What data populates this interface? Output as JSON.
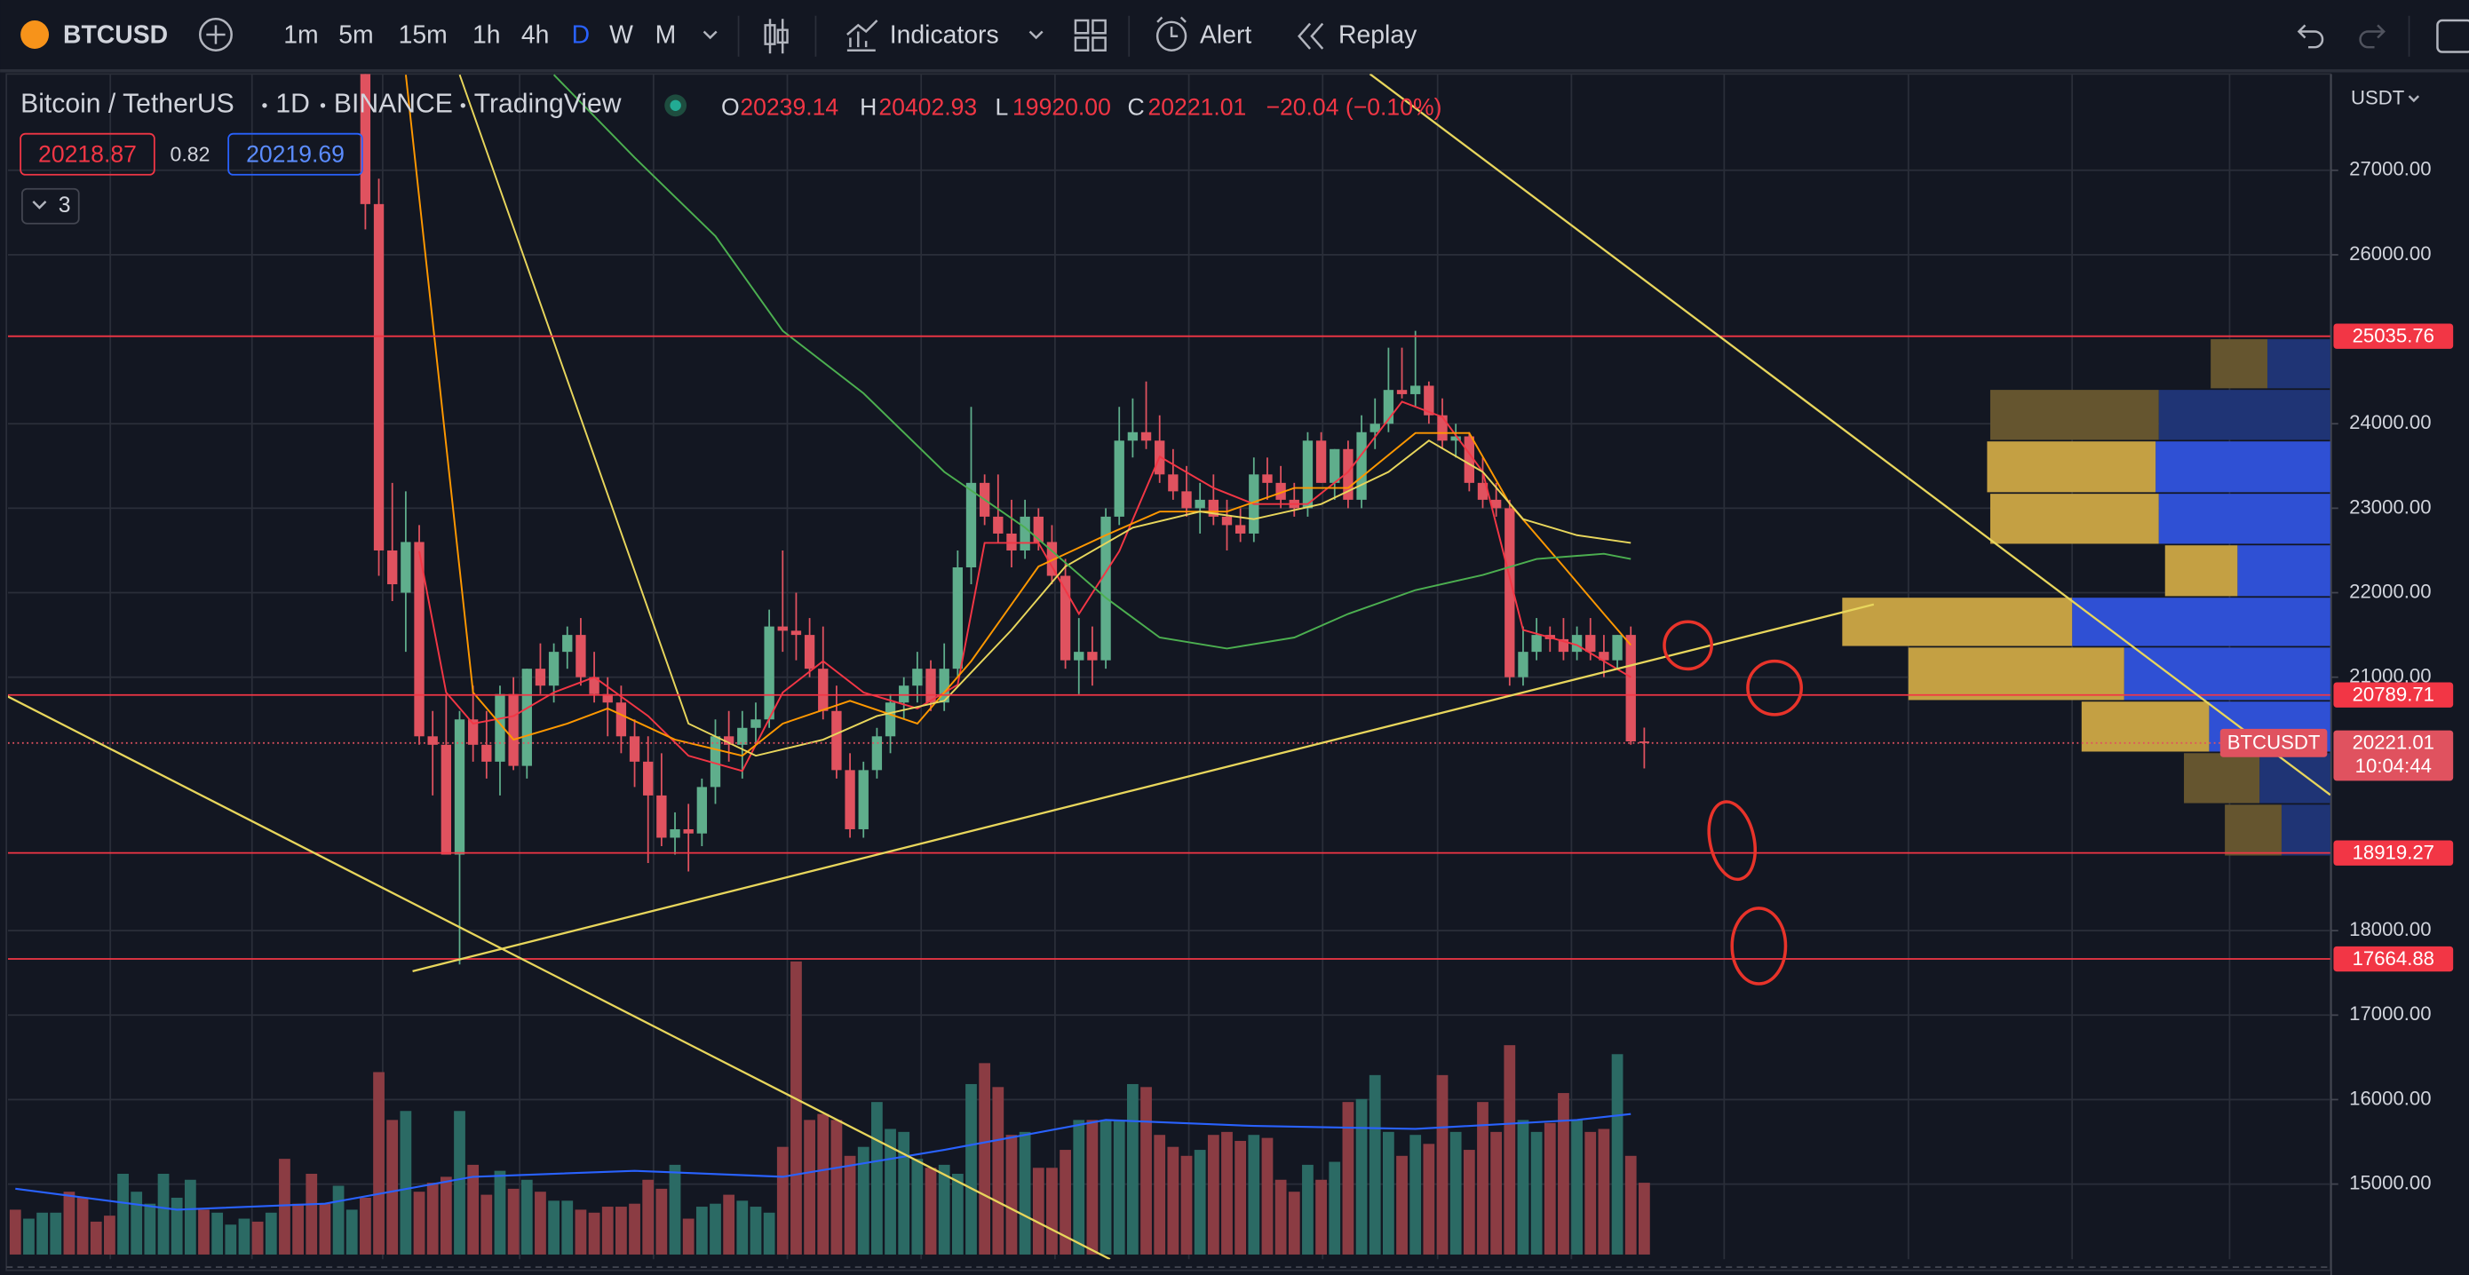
{
  "toolbar": {
    "symbol": "BTCUSD",
    "intervals": [
      "1m",
      "5m",
      "15m",
      "1h",
      "4h",
      "D",
      "W",
      "M"
    ],
    "indicators": "Indicators",
    "alert": "Alert",
    "replay": "Replay"
  },
  "legend": {
    "name": "Bitcoin / TetherUS",
    "interval": "1D",
    "exchange": "BINANCE",
    "source": "TradingView",
    "o_label": "O",
    "open": "20239.14",
    "h_label": "H",
    "high": "20402.93",
    "l_label": "L",
    "low": "19920.00",
    "c_label": "C",
    "close": "20221.01",
    "change": "−20.04 (−0.10%)",
    "bid": "20218.87",
    "spread": "0.82",
    "ask": "20219.69",
    "indicator_count": "3"
  },
  "chart_data": {
    "type": "candlestick",
    "currency": "USDT",
    "ylim": [
      14110,
      28140
    ],
    "yticks": [
      {
        "value": 27000,
        "label": "27000.00"
      },
      {
        "value": 26000,
        "label": "26000.00"
      },
      {
        "value": 24000,
        "label": "24000.00"
      },
      {
        "value": 23000,
        "label": "23000.00"
      },
      {
        "value": 22000,
        "label": "22000.00"
      },
      {
        "value": 21000,
        "label": "21000.00"
      },
      {
        "value": 18000,
        "label": "18000.00"
      },
      {
        "value": 17000,
        "label": "17000.00"
      },
      {
        "value": 16000,
        "label": "16000.00"
      },
      {
        "value": 15000,
        "label": "15000.00"
      }
    ],
    "grid": true,
    "up_color": "#5fae8c",
    "down_color": "#e0525f",
    "up_volume_color": "#2b6a64",
    "down_volume_color": "#8b3c43",
    "ohlc": [
      null,
      null,
      null,
      null,
      null,
      null,
      null,
      null,
      null,
      null,
      null,
      null,
      null,
      null,
      null,
      null,
      null,
      null,
      null,
      null,
      null,
      null,
      null,
      null,
      null,
      null,
      [
        28200,
        28600,
        26300,
        26600
      ],
      [
        26600,
        26900,
        22200,
        22500
      ],
      [
        22500,
        23300,
        21900,
        22100
      ],
      [
        22000,
        23200,
        21300,
        22600
      ],
      [
        22600,
        22800,
        20200,
        20300
      ],
      [
        20300,
        20600,
        19600,
        20200
      ],
      [
        20200,
        20800,
        18900,
        18900
      ],
      [
        18900,
        20600,
        17600,
        20500
      ],
      [
        20500,
        20900,
        20000,
        20200
      ],
      [
        20200,
        20600,
        19800,
        20000
      ],
      [
        20000,
        20900,
        19600,
        20800
      ],
      [
        20800,
        21000,
        19900,
        19950
      ],
      [
        19950,
        21100,
        19800,
        21100
      ],
      [
        21100,
        21400,
        20800,
        20900
      ],
      [
        20900,
        21400,
        20700,
        21300
      ],
      [
        21300,
        21600,
        21100,
        21500
      ],
      [
        21500,
        21700,
        20900,
        21000
      ],
      [
        21000,
        21300,
        20700,
        20800
      ],
      [
        20800,
        21000,
        20300,
        20700
      ],
      [
        20700,
        20900,
        20100,
        20300
      ],
      [
        20300,
        20500,
        19700,
        20000
      ],
      [
        20000,
        20300,
        18800,
        19600
      ],
      [
        19600,
        20100,
        19000,
        19100
      ],
      [
        19100,
        19400,
        18900,
        19200
      ],
      [
        19200,
        19500,
        18700,
        19150
      ],
      [
        19150,
        19800,
        19000,
        19700
      ],
      [
        19700,
        20500,
        19500,
        20300
      ],
      [
        20300,
        20600,
        20000,
        20200
      ],
      [
        20200,
        20600,
        19800,
        20400
      ],
      [
        20400,
        20700,
        20200,
        20500
      ],
      [
        20500,
        21800,
        20400,
        21600
      ],
      [
        21600,
        22500,
        21300,
        21550
      ],
      [
        21550,
        22000,
        21200,
        21500
      ],
      [
        21500,
        21700,
        21000,
        21100
      ],
      [
        21100,
        21600,
        20500,
        20600
      ],
      [
        20600,
        20900,
        19800,
        19900
      ],
      [
        19900,
        20100,
        19100,
        19200
      ],
      [
        19200,
        20000,
        19100,
        19900
      ],
      [
        19900,
        20400,
        19800,
        20300
      ],
      [
        20300,
        20800,
        20100,
        20700
      ],
      [
        20700,
        21000,
        20500,
        20900
      ],
      [
        20900,
        21300,
        20700,
        21100
      ],
      [
        21100,
        21200,
        20600,
        20700
      ],
      [
        20700,
        21400,
        20600,
        21100
      ],
      [
        21100,
        22500,
        21000,
        22300
      ],
      [
        22300,
        24200,
        22100,
        23300
      ],
      [
        23300,
        23400,
        22800,
        22900
      ],
      [
        22900,
        23400,
        22600,
        22700
      ],
      [
        22700,
        23100,
        22300,
        22500
      ],
      [
        22500,
        23100,
        22400,
        22900
      ],
      [
        22900,
        23000,
        22500,
        22600
      ],
      [
        22600,
        22800,
        22100,
        22200
      ],
      [
        22200,
        22400,
        21100,
        21200
      ],
      [
        21200,
        21700,
        20800,
        21300
      ],
      [
        21300,
        21600,
        20900,
        21200
      ],
      [
        21200,
        23000,
        21100,
        22900
      ],
      [
        22900,
        24200,
        22800,
        23800
      ],
      [
        23800,
        24300,
        23600,
        23900
      ],
      [
        23900,
        24500,
        23700,
        23800
      ],
      [
        23800,
        24100,
        23300,
        23400
      ],
      [
        23400,
        23700,
        23100,
        23200
      ],
      [
        23200,
        23500,
        22900,
        23000
      ],
      [
        23000,
        23300,
        22700,
        23100
      ],
      [
        23100,
        23400,
        22800,
        22900
      ],
      [
        22900,
        23100,
        22500,
        22800
      ],
      [
        22800,
        23000,
        22600,
        22700
      ],
      [
        22700,
        23600,
        22600,
        23400
      ],
      [
        23400,
        23600,
        23100,
        23300
      ],
      [
        23300,
        23500,
        23000,
        23100
      ],
      [
        23100,
        23300,
        22900,
        23000
      ],
      [
        23000,
        23900,
        22900,
        23800
      ],
      [
        23800,
        23900,
        23300,
        23300
      ],
      [
        23300,
        23700,
        23100,
        23700
      ],
      [
        23700,
        23800,
        23000,
        23100
      ],
      [
        23100,
        24100,
        23000,
        23900
      ],
      [
        23900,
        24300,
        23700,
        24000
      ],
      [
        24000,
        24900,
        23900,
        24400
      ],
      [
        24400,
        24900,
        24300,
        24350
      ],
      [
        24350,
        25100,
        24200,
        24450
      ],
      [
        24450,
        24500,
        24000,
        24100
      ],
      [
        24100,
        24300,
        23700,
        23800
      ],
      [
        23800,
        24000,
        23600,
        23850
      ],
      [
        23850,
        23900,
        23200,
        23300
      ],
      [
        23300,
        23600,
        23000,
        23100
      ],
      [
        23100,
        23300,
        22900,
        23000
      ],
      [
        23000,
        23100,
        20900,
        21000
      ],
      [
        21000,
        21600,
        20900,
        21300
      ],
      [
        21300,
        21700,
        21200,
        21500
      ],
      [
        21500,
        21600,
        21300,
        21450
      ],
      [
        21450,
        21700,
        21200,
        21300
      ],
      [
        21300,
        21600,
        21200,
        21500
      ],
      [
        21500,
        21700,
        21200,
        21300
      ],
      [
        21300,
        21500,
        21000,
        21200
      ],
      [
        21200,
        21500,
        21100,
        21500
      ],
      [
        21500,
        21600,
        20200,
        20240
      ],
      [
        20239.14,
        20402.93,
        19920,
        20221.01
      ]
    ],
    "volume": [
      15,
      12,
      14,
      14,
      21,
      19,
      11,
      13,
      27,
      21,
      17,
      27,
      19,
      25,
      15,
      14,
      10,
      12,
      11,
      14,
      32,
      17,
      27,
      17,
      23,
      15,
      19,
      61,
      45,
      48,
      21,
      24,
      26,
      48,
      30,
      20,
      28,
      22,
      25,
      21,
      18,
      18,
      15,
      14,
      16,
      16,
      17,
      25,
      22,
      30,
      12,
      16,
      17,
      20,
      18,
      16,
      14,
      36,
      98,
      45,
      47,
      45,
      33,
      36,
      51,
      42,
      41,
      32,
      29,
      30,
      27,
      57,
      64,
      56,
      40,
      41,
      29,
      29,
      35,
      45,
      45,
      45,
      45,
      57,
      56,
      40,
      36,
      33,
      35,
      40,
      41,
      38,
      40,
      39,
      25,
      21,
      30,
      25,
      31,
      51,
      52,
      60,
      41,
      33,
      40,
      37,
      60,
      41,
      35,
      51,
      41,
      70,
      45,
      41,
      44,
      54,
      45,
      41,
      42,
      67,
      33,
      24
    ],
    "volume_up": [
      0,
      1,
      1,
      1,
      0,
      0,
      0,
      0,
      1,
      1,
      1,
      1,
      1,
      1,
      0,
      1,
      1,
      1,
      0,
      1,
      0,
      0,
      0,
      0,
      1,
      1,
      0,
      0,
      0,
      1,
      0,
      0,
      0,
      1,
      0,
      0,
      1,
      0,
      1,
      0,
      1,
      1,
      0,
      0,
      0,
      0,
      0,
      0,
      0,
      1,
      0,
      1,
      1,
      0,
      1,
      1,
      1,
      0,
      0,
      0,
      0,
      0,
      0,
      1,
      1,
      1,
      1,
      1,
      0,
      1,
      1,
      1,
      0,
      0,
      0,
      1,
      0,
      0,
      0,
      1,
      0,
      1,
      1,
      1,
      0,
      0,
      0,
      0,
      1,
      0,
      0,
      0,
      1,
      0,
      0,
      0,
      1,
      0,
      1,
      0,
      1,
      1,
      1,
      0,
      1,
      0,
      0,
      1,
      0,
      0,
      0,
      0,
      1,
      1,
      0,
      0,
      1,
      0,
      0,
      1,
      0,
      0
    ],
    "volume_ma": {
      "color": "#2962ff",
      "x": [
        0,
        12,
        23,
        34,
        46,
        57,
        69,
        81,
        92,
        104,
        116,
        120
      ],
      "values": [
        22,
        15,
        17,
        26,
        28,
        26,
        35,
        45,
        43,
        42,
        45,
        47
      ]
    },
    "moving_averages": [
      {
        "color": "#f23645",
        "x": [
          30,
          32,
          34,
          37,
          40,
          43,
          47,
          50,
          54,
          57,
          60,
          63,
          67,
          70,
          72,
          76,
          79,
          82,
          85,
          89,
          92,
          96,
          99,
          103,
          106,
          109,
          112,
          116,
          120
        ],
        "values": [
          22490,
          20820,
          20450,
          20540,
          20820,
          21000,
          20540,
          20070,
          19890,
          20820,
          21190,
          20820,
          20630,
          20910,
          22590,
          22590,
          21750,
          22490,
          23610,
          23240,
          23050,
          23050,
          23430,
          24260,
          24080,
          23430,
          21560,
          21380,
          21000
        ]
      },
      {
        "color": "#ff9800",
        "x": [
          29,
          34,
          37,
          41,
          44,
          49,
          54,
          57,
          62,
          67,
          71,
          76,
          81,
          85,
          90,
          95,
          99,
          104,
          108,
          111,
          115,
          118,
          120
        ],
        "values": [
          28130,
          20820,
          20260,
          20450,
          20630,
          20260,
          20070,
          20450,
          20720,
          20450,
          21190,
          22310,
          22680,
          22960,
          22960,
          23240,
          23240,
          23890,
          23890,
          23050,
          22310,
          21750,
          21380
        ]
      },
      {
        "color": "#e8d65c",
        "x": [
          33,
          50,
          55,
          60,
          64,
          69,
          74,
          78,
          83,
          88,
          92,
          97,
          102,
          105,
          109,
          112,
          116,
          120
        ],
        "values": [
          28130,
          20450,
          20070,
          20260,
          20540,
          20720,
          21560,
          22310,
          22770,
          22960,
          22870,
          23050,
          23430,
          23800,
          23430,
          22870,
          22680,
          22590
        ]
      },
      {
        "color": "#4caf50",
        "x": [
          40,
          46,
          52,
          57,
          63,
          69,
          75,
          81,
          85,
          90,
          95,
          99,
          104,
          109,
          113,
          118,
          120
        ],
        "values": [
          28130,
          27150,
          26220,
          25100,
          24360,
          23430,
          22770,
          21940,
          21470,
          21340,
          21470,
          21750,
          22030,
          22210,
          22400,
          22460,
          22400
        ]
      }
    ],
    "levels": [
      25035.76,
      20789.71,
      18919.27,
      17664.88
    ],
    "level_color": "#f23645",
    "last_price_label": "BTCUSDT",
    "countdown": "10:04:44",
    "profile": {
      "bins": [
        25010,
        24410,
        23800,
        23180,
        22570,
        21950,
        21360,
        20720,
        20110,
        19500,
        18880
      ],
      "up": [
        40,
        109,
        111,
        109,
        59,
        164,
        131,
        77,
        45,
        31
      ],
      "down": [
        36,
        107,
        107,
        107,
        46,
        146,
        137,
        81,
        48,
        36
      ],
      "in_value_area": [
        false,
        false,
        true,
        true,
        true,
        true,
        true,
        true,
        false,
        false
      ],
      "up_color": "#2f50d4",
      "up_dim_color": "#1f3475",
      "down_color": "#c4a043",
      "down_dim_color": "#65552f"
    }
  }
}
